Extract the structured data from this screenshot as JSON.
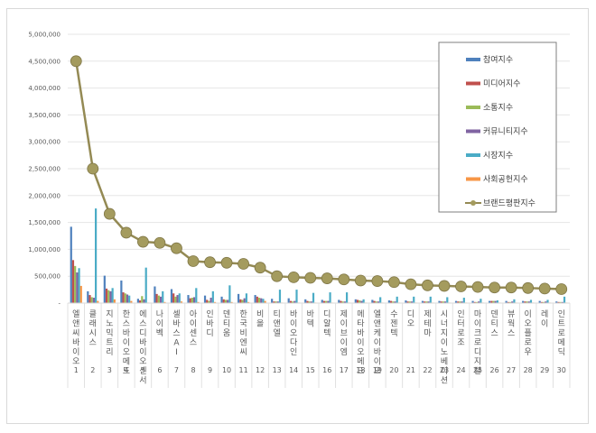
{
  "chart_data": {
    "type": "bar",
    "title": "",
    "xlabel": "",
    "ylabel": "",
    "ylim": [
      0,
      5000000
    ],
    "yticks": [
      "-",
      "500,000",
      "1,000,000",
      "1,500,000",
      "2,000,000",
      "2,500,000",
      "3,000,000",
      "3,500,000",
      "4,000,000",
      "4,500,000",
      "5,000,000"
    ],
    "grid": true,
    "legend_position": "right-top",
    "ranks": [
      "1",
      "2",
      "3",
      "4",
      "5",
      "6",
      "7",
      "8",
      "9",
      "10",
      "11",
      "12",
      "13",
      "14",
      "15",
      "16",
      "17",
      "18",
      "19",
      "20",
      "21",
      "22",
      "23",
      "24",
      "25",
      "26",
      "27",
      "28",
      "29",
      "30"
    ],
    "categories": [
      "엘앤씨바이오",
      "클래시스",
      "지노믹트리",
      "한스바이오메드",
      "에스디바이오센서",
      "나이벡",
      "셀바스AI",
      "아이센스",
      "인바디",
      "덴티움",
      "한국비엔씨",
      "비올",
      "티앤엘",
      "바이오다인",
      "바텍",
      "디알텍",
      "제이브이엠",
      "메타바이오메드",
      "엘앤케이바이오",
      "수젠텍",
      "디오",
      "제테마",
      "시너지이노베이션",
      "인터로조",
      "마이크로디지탈",
      "덴티스",
      "뷰웍스",
      "이오플로우",
      "레이",
      "인트로메딕"
    ],
    "series": [
      {
        "name": "참여지수",
        "color": "#4f81bd",
        "type": "bar",
        "values": [
          1420000,
          220000,
          510000,
          420000,
          80000,
          310000,
          260000,
          150000,
          140000,
          120000,
          170000,
          150000,
          80000,
          90000,
          70000,
          60000,
          60000,
          70000,
          60000,
          50000,
          50000,
          40000,
          40000,
          40000,
          40000,
          40000,
          40000,
          40000,
          40000,
          30000
        ]
      },
      {
        "name": "미디어지수",
        "color": "#c0504d",
        "type": "bar",
        "values": [
          800000,
          150000,
          270000,
          200000,
          50000,
          170000,
          180000,
          90000,
          60000,
          70000,
          70000,
          120000,
          30000,
          40000,
          40000,
          40000,
          40000,
          60000,
          40000,
          40000,
          30000,
          30000,
          30000,
          30000,
          20000,
          40000,
          20000,
          30000,
          20000,
          20000
        ]
      },
      {
        "name": "소통지수",
        "color": "#9bbb59",
        "type": "bar",
        "values": [
          690000,
          110000,
          240000,
          180000,
          130000,
          140000,
          120000,
          100000,
          40000,
          60000,
          60000,
          100000,
          30000,
          30000,
          30000,
          40000,
          30000,
          50000,
          30000,
          30000,
          30000,
          30000,
          30000,
          30000,
          20000,
          40000,
          20000,
          30000,
          20000,
          20000
        ]
      },
      {
        "name": "커뮤니티지수",
        "color": "#8064a2",
        "type": "bar",
        "values": [
          570000,
          100000,
          220000,
          160000,
          70000,
          120000,
          150000,
          110000,
          100000,
          60000,
          90000,
          90000,
          30000,
          40000,
          30000,
          40000,
          30000,
          40000,
          30000,
          30000,
          30000,
          30000,
          30000,
          30000,
          30000,
          40000,
          30000,
          30000,
          30000,
          20000
        ]
      },
      {
        "name": "시장지수",
        "color": "#4bacc6",
        "type": "bar",
        "values": [
          650000,
          1760000,
          280000,
          140000,
          660000,
          220000,
          180000,
          280000,
          220000,
          330000,
          180000,
          80000,
          250000,
          250000,
          190000,
          200000,
          200000,
          70000,
          110000,
          120000,
          120000,
          120000,
          110000,
          100000,
          80000,
          50000,
          70000,
          60000,
          60000,
          120000
        ]
      },
      {
        "name": "사회공헌지수",
        "color": "#f79646",
        "type": "bar",
        "values": [
          320000,
          40000,
          70000,
          40000,
          10000,
          20000,
          30000,
          20000,
          20000,
          20000,
          20000,
          40000,
          10000,
          10000,
          10000,
          10000,
          10000,
          10000,
          10000,
          10000,
          10000,
          10000,
          10000,
          10000,
          10000,
          10000,
          10000,
          10000,
          10000,
          10000
        ]
      },
      {
        "name": "브랜드평판지수",
        "color": "#948a54",
        "type": "line",
        "values": [
          4500000,
          2500000,
          1660000,
          1310000,
          1140000,
          1120000,
          1020000,
          780000,
          760000,
          750000,
          730000,
          660000,
          500000,
          480000,
          470000,
          460000,
          440000,
          420000,
          410000,
          390000,
          350000,
          330000,
          320000,
          310000,
          300000,
          290000,
          290000,
          280000,
          270000,
          260000
        ]
      }
    ]
  }
}
